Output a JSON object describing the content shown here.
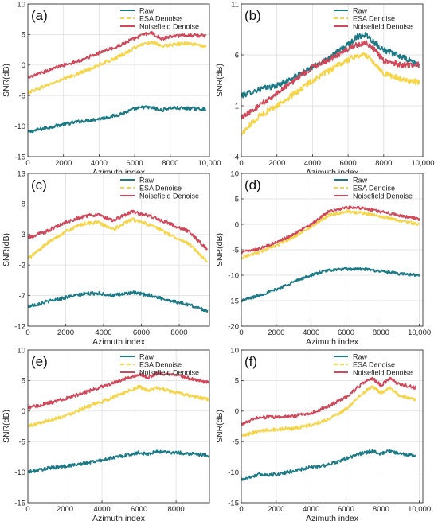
{
  "colors": {
    "raw": "#1b7a86",
    "esa": "#f5d547",
    "noisefield": "#d0485a"
  },
  "chart_data": [
    {
      "type": "line",
      "panel_label": "(a)",
      "xlabel": "Azimuth index",
      "ylabel": "SNR(dB)",
      "xlim": [
        0,
        10200
      ],
      "ylim": [
        -15,
        10
      ],
      "xticks": [
        0,
        2000,
        4000,
        6000,
        8000,
        10200
      ],
      "xtick_labels": [
        "0",
        "2000",
        "4000",
        "6000",
        "8000",
        "10,000"
      ],
      "yticks": [
        -15,
        -10,
        -5,
        0,
        5,
        10
      ],
      "ytick_labels": [
        "-15",
        "-10",
        "-5",
        "0",
        "5",
        "10"
      ],
      "grid": true,
      "legend": "top-right",
      "x": [
        0,
        1000,
        2000,
        3000,
        4000,
        5000,
        6000,
        6500,
        7000,
        7500,
        8000,
        9000,
        10000
      ],
      "series": [
        {
          "name": "Raw",
          "style": "solid",
          "values": [
            -11,
            -10.3,
            -9.7,
            -9.2,
            -8.8,
            -8.2,
            -7.2,
            -6.9,
            -7.0,
            -7.4,
            -7.0,
            -7.1,
            -7.2
          ]
        },
        {
          "name": "ESA Denoise",
          "style": "dashed",
          "values": [
            -4.5,
            -3.4,
            -2.3,
            -1.2,
            0,
            1.2,
            2.8,
            3.5,
            3.8,
            3.0,
            3.3,
            3.6,
            3.0
          ]
        },
        {
          "name": "Noisefield Denoise",
          "style": "solid",
          "values": [
            -2.2,
            -1.0,
            0,
            0.8,
            2.0,
            3.0,
            4.4,
            5.0,
            5.2,
            4.3,
            4.6,
            4.9,
            4.8
          ]
        }
      ]
    },
    {
      "type": "line",
      "panel_label": "(b)",
      "xlabel": "Azimuth index",
      "ylabel": "SNR(dB)",
      "xlim": [
        0,
        10200
      ],
      "ylim": [
        -4,
        11
      ],
      "xticks": [
        0,
        2000,
        4000,
        6000,
        8000,
        10200
      ],
      "xtick_labels": [
        "0",
        "2000",
        "4000",
        "6000",
        "8000",
        "10,000"
      ],
      "yticks": [
        -4,
        1,
        6,
        11
      ],
      "ytick_labels": [
        "-4",
        "1",
        "6",
        "11"
      ],
      "grid": true,
      "legend": "top-right",
      "x": [
        0,
        1000,
        2000,
        3000,
        4000,
        5000,
        6000,
        6500,
        7000,
        7500,
        8000,
        9000,
        10000
      ],
      "series": [
        {
          "name": "Raw",
          "style": "solid",
          "values": [
            2.0,
            2.6,
            3.0,
            3.8,
            4.8,
            5.8,
            7.0,
            7.8,
            8.0,
            7.2,
            6.5,
            5.8,
            5.0
          ]
        },
        {
          "name": "ESA Denoise",
          "style": "dashed",
          "values": [
            -1.8,
            0,
            1.0,
            2.2,
            3.5,
            4.5,
            5.5,
            5.9,
            6.0,
            5.2,
            4.2,
            3.6,
            3.3
          ]
        },
        {
          "name": "Noisefield Denoise",
          "style": "solid",
          "values": [
            -0.2,
            1.0,
            2.2,
            3.5,
            4.8,
            5.6,
            6.6,
            7.0,
            7.2,
            6.5,
            5.4,
            5.0,
            5.0
          ]
        }
      ]
    },
    {
      "type": "line",
      "panel_label": "(c)",
      "xlabel": "Azimuth index",
      "ylabel": "SNR(dB)",
      "xlim": [
        0,
        9600
      ],
      "ylim": [
        -12,
        13
      ],
      "xticks": [
        0,
        2000,
        4000,
        6000,
        8000
      ],
      "xtick_labels": [
        "0",
        "2000",
        "4000",
        "6000",
        "8000"
      ],
      "yticks": [
        -12,
        -7,
        -2,
        3,
        8,
        13
      ],
      "ytick_labels": [
        "-12",
        "-7",
        "-2",
        "3",
        "8",
        "13"
      ],
      "grid": true,
      "legend": "top-right",
      "x": [
        0,
        1000,
        2000,
        3000,
        3700,
        4500,
        5500,
        6500,
        7500,
        8500,
        9500
      ],
      "series": [
        {
          "name": "Raw",
          "style": "solid",
          "values": [
            -8.8,
            -8.0,
            -7.3,
            -6.7,
            -6.6,
            -7.0,
            -6.5,
            -7.0,
            -7.8,
            -8.5,
            -9.5
          ]
        },
        {
          "name": "ESA Denoise",
          "style": "dashed",
          "values": [
            -1.0,
            1.5,
            3.5,
            4.8,
            5.0,
            3.8,
            5.5,
            4.5,
            3.0,
            1.5,
            -1.5
          ]
        },
        {
          "name": "Noisefield Denoise",
          "style": "solid",
          "values": [
            2.5,
            3.5,
            5.0,
            6.0,
            6.3,
            5.3,
            6.7,
            6.0,
            4.8,
            3.5,
            0.5
          ]
        }
      ]
    },
    {
      "type": "line",
      "panel_label": "(d)",
      "xlabel": "Azimuth index",
      "ylabel": "SNR(dB)",
      "xlim": [
        0,
        10400
      ],
      "ylim": [
        -20,
        10
      ],
      "xticks": [
        0,
        2000,
        4000,
        6000,
        8000,
        10200
      ],
      "xtick_labels": [
        "0",
        "2000",
        "4000",
        "6000",
        "8000",
        "10,000"
      ],
      "yticks": [
        -20,
        -15,
        -10,
        -5,
        0,
        5,
        10
      ],
      "ytick_labels": [
        "-20",
        "-15",
        "-10",
        "-5",
        "0",
        "5",
        "10"
      ],
      "grid": true,
      "legend": "top-right",
      "x": [
        0,
        1000,
        2000,
        3000,
        4000,
        5000,
        6000,
        7000,
        8000,
        9000,
        10200
      ],
      "series": [
        {
          "name": "Raw",
          "style": "solid",
          "values": [
            -15,
            -14,
            -12.8,
            -11.3,
            -10,
            -9,
            -8.8,
            -8.8,
            -9.2,
            -9.7,
            -10
          ]
        },
        {
          "name": "ESA Denoise",
          "style": "dashed",
          "values": [
            -6.5,
            -5.5,
            -4.2,
            -2.5,
            -0.5,
            1.8,
            2.5,
            2.2,
            1.5,
            0.8,
            0
          ]
        },
        {
          "name": "Noisefield Denoise",
          "style": "solid",
          "values": [
            -5.5,
            -4.8,
            -3.5,
            -2.0,
            0,
            2.5,
            3.3,
            3.2,
            2.5,
            1.8,
            1.0
          ]
        }
      ]
    },
    {
      "type": "line",
      "panel_label": "(e)",
      "xlabel": "Azimuth index",
      "ylabel": "SNR(dB)",
      "xlim": [
        0,
        9800
      ],
      "ylim": [
        -15,
        10
      ],
      "xticks": [
        0,
        2000,
        4000,
        6000,
        8000
      ],
      "xtick_labels": [
        "0",
        "2000",
        "4000",
        "6000",
        "8000"
      ],
      "yticks": [
        -15,
        -10,
        -5,
        0,
        5,
        10
      ],
      "ytick_labels": [
        "-15",
        "-10",
        "-5",
        "0",
        "5",
        "10"
      ],
      "grid": true,
      "legend": "top-right",
      "x": [
        0,
        1000,
        2000,
        3000,
        4000,
        5000,
        6000,
        6500,
        7000,
        8000,
        9000,
        9800
      ],
      "series": [
        {
          "name": "Raw",
          "style": "solid",
          "values": [
            -10,
            -9.4,
            -9.0,
            -8.6,
            -8.0,
            -7.4,
            -6.8,
            -7.0,
            -6.6,
            -6.8,
            -7.0,
            -7.3
          ]
        },
        {
          "name": "ESA Denoise",
          "style": "dashed",
          "values": [
            -2.5,
            -1.6,
            -0.8,
            0.5,
            1.5,
            2.8,
            4.0,
            3.3,
            3.8,
            3.0,
            2.4,
            1.8
          ]
        },
        {
          "name": "Noisefield Denoise",
          "style": "solid",
          "values": [
            0.5,
            1.2,
            2.0,
            3.0,
            4.0,
            5.0,
            6.0,
            5.5,
            6.2,
            5.8,
            5.2,
            4.6
          ]
        }
      ]
    },
    {
      "type": "line",
      "panel_label": "(f)",
      "xlabel": "Azimuth index",
      "ylabel": "SNR(dB)",
      "xlim": [
        0,
        10400
      ],
      "ylim": [
        -15,
        10
      ],
      "xticks": [
        0,
        2000,
        4000,
        6000,
        8000,
        10200
      ],
      "xtick_labels": [
        "0",
        "2000",
        "4000",
        "6000",
        "8000",
        "10,000"
      ],
      "yticks": [
        -15,
        -10,
        -5,
        0,
        5,
        10
      ],
      "ytick_labels": [
        "-15",
        "-10",
        "-5",
        "0",
        "5",
        "10"
      ],
      "grid": true,
      "legend": "top-right",
      "x": [
        0,
        1000,
        2000,
        3000,
        4000,
        5000,
        6000,
        7000,
        7500,
        8000,
        8500,
        9000,
        10000
      ],
      "series": [
        {
          "name": "Raw",
          "style": "solid",
          "values": [
            -11.2,
            -10.4,
            -10.4,
            -9.8,
            -9.2,
            -8.8,
            -7.8,
            -6.8,
            -6.6,
            -7.0,
            -6.5,
            -7.0,
            -7.3
          ]
        },
        {
          "name": "ESA Denoise",
          "style": "dashed",
          "values": [
            -4.2,
            -3.2,
            -3.0,
            -2.8,
            -2.3,
            -1.3,
            0.3,
            3.0,
            4.0,
            3.0,
            3.8,
            2.7,
            1.8
          ]
        },
        {
          "name": "Noisefield Denoise",
          "style": "solid",
          "values": [
            -2.2,
            -1.0,
            -1.0,
            -0.8,
            -0.3,
            0.8,
            2.3,
            4.6,
            5.4,
            4.2,
            5.3,
            4.5,
            3.8
          ]
        }
      ]
    }
  ]
}
